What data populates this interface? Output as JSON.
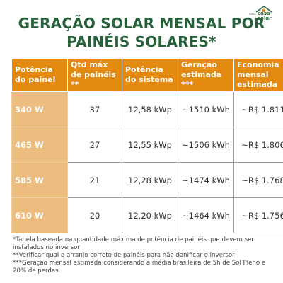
{
  "logo": {
    "small_text": "meu",
    "line1": "casa",
    "line2": "solar",
    "icon": "roof-sun-icon",
    "brand_color": "#2f6b3a",
    "sun_color": "#e48a11"
  },
  "title": {
    "line1": "GERAÇÃO SOLAR MENSAL POR",
    "line2": "PAINÉIS SOLARES*"
  },
  "colors": {
    "title": "#27613a",
    "header_bg": "#e48a11",
    "first_col_bg": "#ecbd7f"
  },
  "table": {
    "headers": [
      "Potência do painel",
      "Qtd máx de painéis **",
      "Potência do sistema",
      "Geração estimada ***",
      "Economia mensal estimada"
    ],
    "rows": [
      [
        "340 W",
        "37",
        "12,58 kWp",
        "~1510 kWh",
        "~R$ 1.811"
      ],
      [
        "465 W",
        "27",
        "12,55 kWp",
        "~1506 kWh",
        "~R$ 1.806"
      ],
      [
        "585 W",
        "21",
        "12,28 kWp",
        "~1474 kWh",
        "~R$ 1.768"
      ],
      [
        "610 W",
        "20",
        "12,20 kWp",
        "~1464 kWh",
        "~R$ 1.756"
      ]
    ]
  },
  "notes": [
    "*Tabela baseada na quantidade máxima de potência de painéis que devem ser instalados no inversor",
    "**Verificar qual o arranjo correto de painéis para não danificar o inversor",
    "***Geração mensal estimada considerando a média brasileira de 5h de Sol Pleno e 20% de perdas"
  ]
}
